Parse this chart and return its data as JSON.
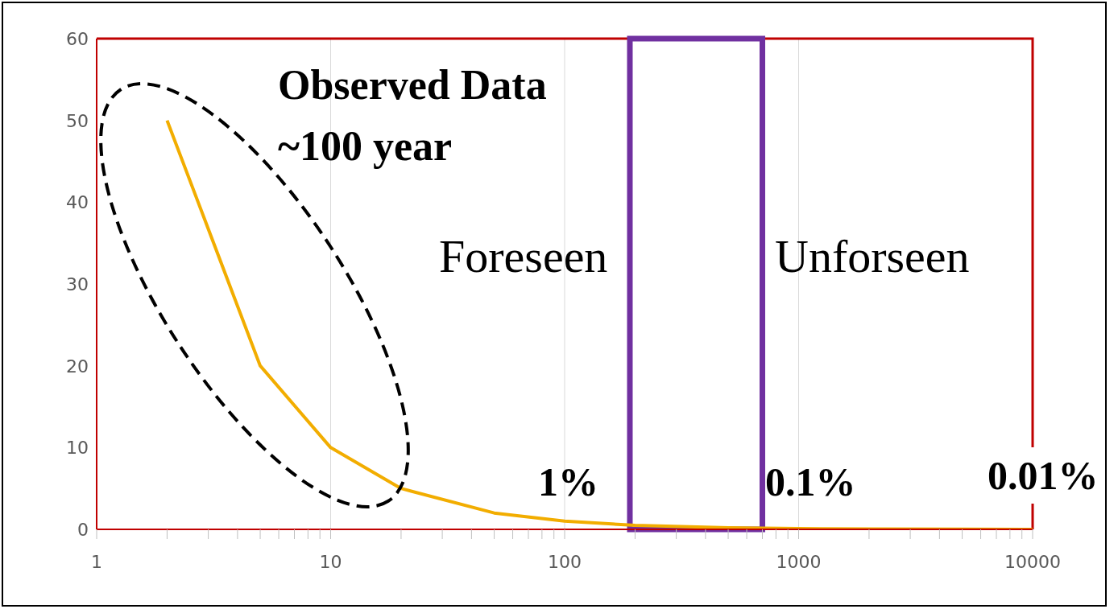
{
  "chart_data": {
    "type": "line",
    "x": [
      2,
      5,
      10,
      20,
      50,
      100,
      200,
      500,
      1000,
      2000,
      5000,
      10000
    ],
    "series": [
      {
        "color": "#f2ad00",
        "values": [
          50,
          20,
          10,
          5,
          2,
          1,
          0.5,
          0.2,
          0.1,
          0.05,
          0.02,
          0.01
        ]
      }
    ],
    "xlim": [
      1,
      10000
    ],
    "xticks": [
      1,
      {
        "value": 2,
        "label": null
      },
      {
        "value": 3,
        "label": null
      },
      {
        "value": 4,
        "label": null
      },
      {
        "value": 5,
        "label": null
      },
      {
        "value": 6,
        "label": null
      },
      {
        "value": 7,
        "label": null
      },
      {
        "value": 8,
        "label": null
      },
      {
        "value": 9,
        "label": null
      },
      10,
      {
        "value": 20,
        "label": null
      },
      {
        "value": 30,
        "label": null
      },
      {
        "value": 40,
        "label": null
      },
      {
        "value": 50,
        "label": null
      },
      {
        "value": 60,
        "label": null
      },
      {
        "value": 70,
        "label": null
      },
      {
        "value": 80,
        "label": null
      },
      {
        "value": 90,
        "label": null
      },
      100,
      {
        "value": 200,
        "label": null
      },
      {
        "value": 300,
        "label": null
      },
      {
        "value": 400,
        "label": null
      },
      {
        "value": 500,
        "label": null
      },
      {
        "value": 600,
        "label": null
      },
      {
        "value": 700,
        "label": null
      },
      {
        "value": 800,
        "label": null
      },
      {
        "value": 900,
        "label": null
      },
      1000,
      {
        "value": 2000,
        "label": null
      },
      {
        "value": 3000,
        "label": null
      },
      {
        "value": 4000,
        "label": null
      },
      {
        "value": 5000,
        "label": null
      },
      {
        "value": 6000,
        "label": null
      },
      {
        "value": 7000,
        "label": null
      },
      {
        "value": 8000,
        "label": null
      },
      {
        "value": 9000,
        "label": null
      },
      10000
    ],
    "ylim": [
      0,
      60
    ],
    "yticks": [
      0,
      10,
      20,
      30,
      40,
      50,
      60
    ],
    "log": "x",
    "grid": true,
    "bands": [
      {
        "axis": "x",
        "from": 190,
        "to": 700,
        "color": "#7030a0"
      }
    ],
    "annotations": [
      "Observed Data ~100 year",
      "Foreseen",
      "Unforseen",
      "1%",
      "0.1%",
      "0.01%"
    ]
  }
}
